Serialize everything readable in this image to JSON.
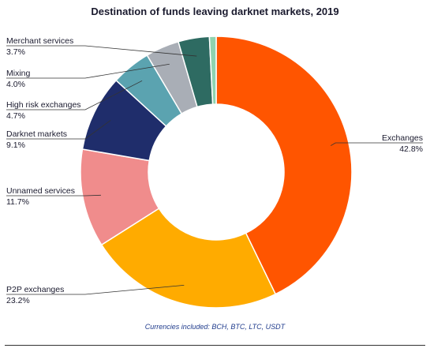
{
  "chart_data": {
    "type": "pie",
    "title": "Destination of funds leaving darknet markets, 2019",
    "donut": true,
    "slices": [
      {
        "label": "Exchanges",
        "value": 42.8,
        "display": "42.8%",
        "color": "#ff5500"
      },
      {
        "label": "P2P exchanges",
        "value": 23.2,
        "display": "23.2%",
        "color": "#ffab00"
      },
      {
        "label": "Unnamed services",
        "value": 11.7,
        "display": "11.7%",
        "color": "#f08c8c"
      },
      {
        "label": "Darknet markets",
        "value": 9.1,
        "display": "9.1%",
        "color": "#1f2d6b"
      },
      {
        "label": "High risk exchanges",
        "value": 4.7,
        "display": "4.7%",
        "color": "#5ba3b0"
      },
      {
        "label": "Mixing",
        "value": 4.0,
        "display": "4.0%",
        "color": "#a9aeb6"
      },
      {
        "label": "Merchant services",
        "value": 3.7,
        "display": "3.7%",
        "color": "#2e6b62"
      },
      {
        "label": "",
        "value": 0.8,
        "display": "",
        "color": "#8fd3b0"
      }
    ],
    "footnote": "Currencies included: BCH, BTC, LTC, USDT"
  }
}
